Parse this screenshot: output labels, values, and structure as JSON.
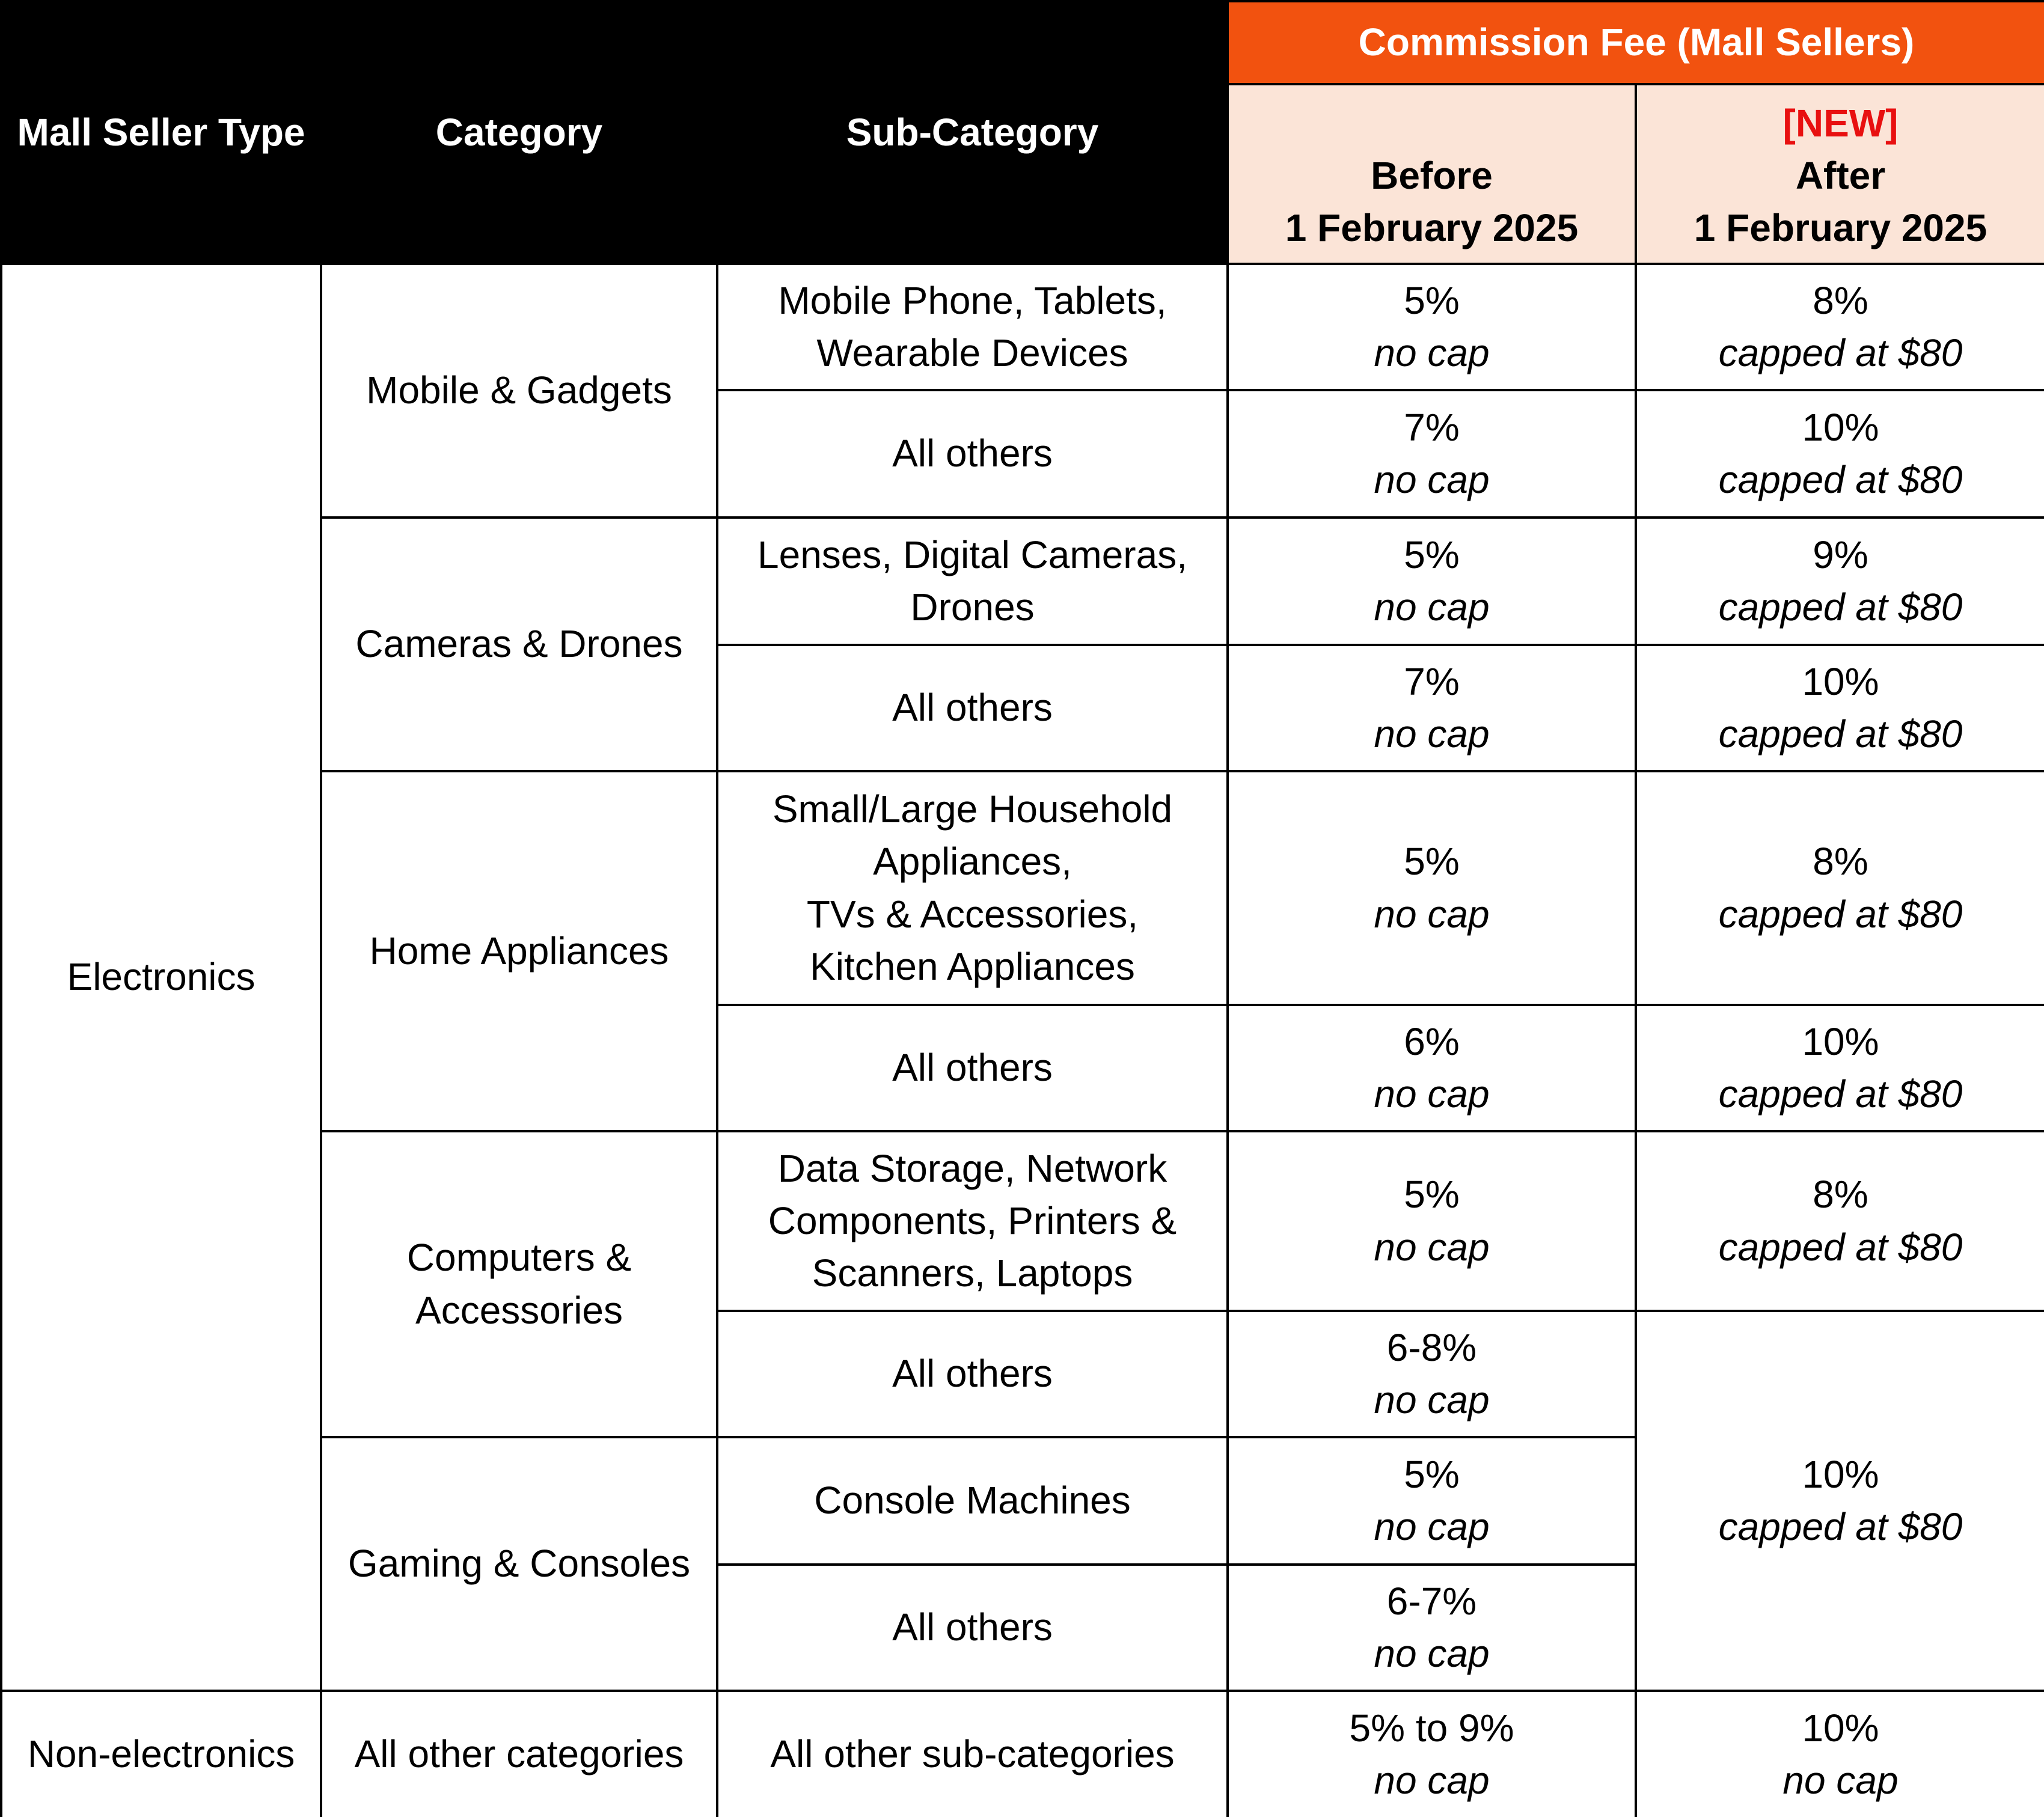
{
  "header": {
    "mall_seller_type": "Mall Seller Type",
    "category": "Category",
    "sub_category": "Sub-Category",
    "commission_fee": "Commission Fee (Mall Sellers)",
    "before": "Before",
    "before_date": "1 February 2025",
    "new_tag": "[NEW]",
    "after": "After",
    "after_date": "1 February 2025"
  },
  "table": {
    "groups": [
      {
        "seller_type": "Electronics",
        "categories": [
          {
            "name": "Mobile & Gadgets",
            "subs": [
              {
                "name": "Mobile Phone, Tablets, Wearable Devices",
                "before": {
                  "rate": "5%",
                  "cap": "no cap"
                },
                "after": {
                  "rate": "8%",
                  "cap": "capped at $80"
                }
              },
              {
                "name": "All others",
                "before": {
                  "rate": "7%",
                  "cap": "no cap"
                },
                "after": {
                  "rate": "10%",
                  "cap": "capped at $80"
                }
              }
            ]
          },
          {
            "name": "Cameras & Drones",
            "subs": [
              {
                "name": "Lenses, Digital Cameras, Drones",
                "before": {
                  "rate": "5%",
                  "cap": "no cap"
                },
                "after": {
                  "rate": "9%",
                  "cap": "capped at $80"
                }
              },
              {
                "name": "All others",
                "before": {
                  "rate": "7%",
                  "cap": "no cap"
                },
                "after": {
                  "rate": "10%",
                  "cap": "capped at $80"
                }
              }
            ]
          },
          {
            "name": "Home Appliances",
            "subs": [
              {
                "name": "Small/Large Household Appliances,\nTVs & Accessories,\nKitchen Appliances",
                "before": {
                  "rate": "5%",
                  "cap": "no cap"
                },
                "after": {
                  "rate": "8%",
                  "cap": "capped at $80"
                }
              },
              {
                "name": "All others",
                "before": {
                  "rate": "6%",
                  "cap": "no cap"
                },
                "after": {
                  "rate": "10%",
                  "cap": "capped at $80"
                }
              }
            ]
          },
          {
            "name": "Computers & Accessories",
            "subs": [
              {
                "name": "Data Storage, Network Components, Printers & Scanners, Laptops",
                "before": {
                  "rate": "5%",
                  "cap": "no cap"
                },
                "after": {
                  "rate": "8%",
                  "cap": "capped at $80"
                }
              },
              {
                "name": "All others",
                "before": {
                  "rate": "6-8%",
                  "cap": "no cap"
                },
                "after": {
                  "rate": "10%",
                  "cap": "capped at $80"
                }
              }
            ]
          },
          {
            "name": "Gaming & Consoles",
            "subs": [
              {
                "name": "Console Machines",
                "before": {
                  "rate": "5%",
                  "cap": "no cap"
                }
              },
              {
                "name": "All others",
                "before": {
                  "rate": "6-7%",
                  "cap": "no cap"
                }
              }
            ]
          }
        ]
      },
      {
        "seller_type": "Non-electronics",
        "categories": [
          {
            "name": "All other categories",
            "subs": [
              {
                "name": "All other sub-categories",
                "before": {
                  "rate": "5% to 9%",
                  "cap": "no cap"
                },
                "after": {
                  "rate": "10%",
                  "cap": "no cap"
                }
              }
            ]
          }
        ]
      }
    ]
  }
}
